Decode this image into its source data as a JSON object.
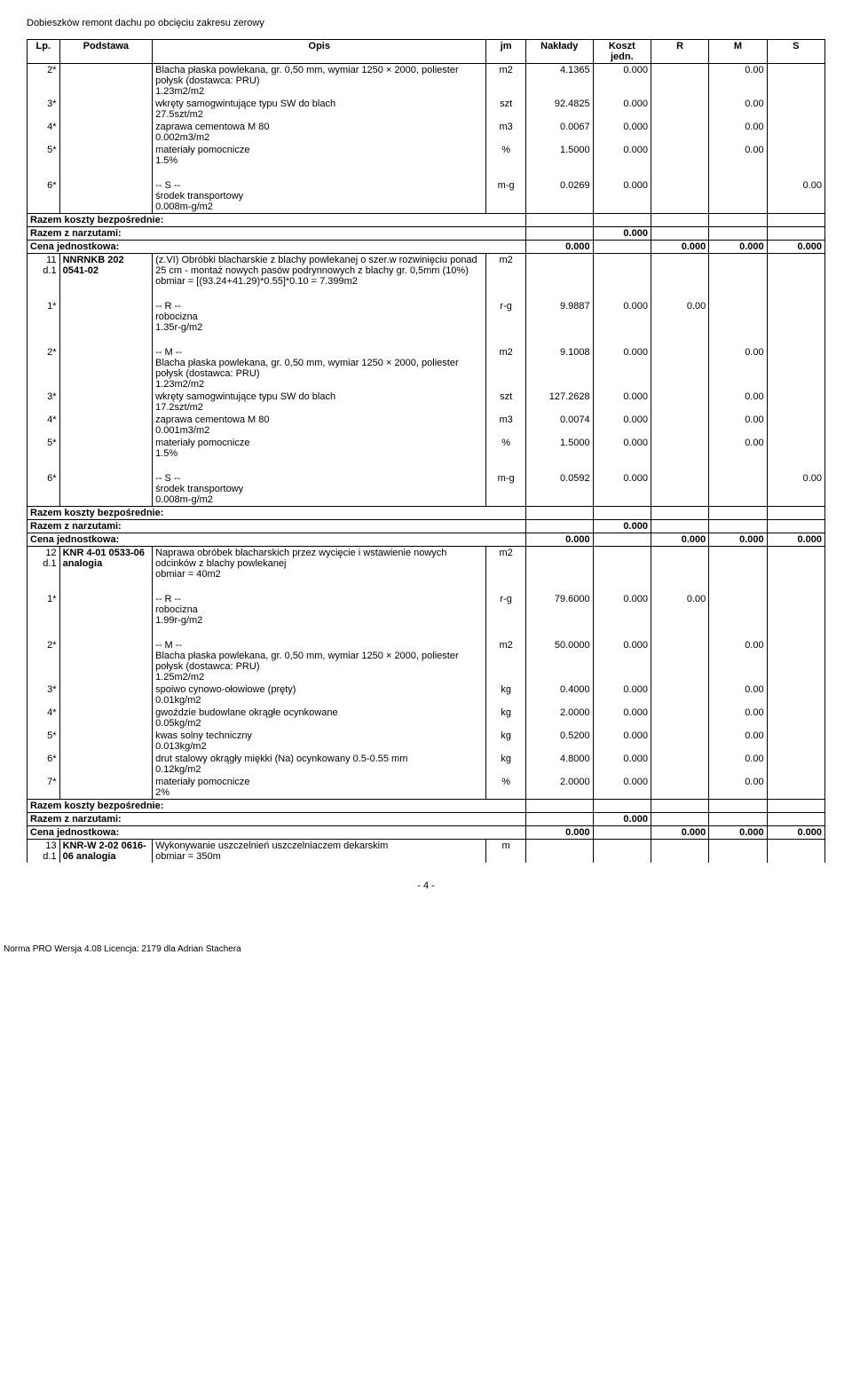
{
  "doc_title": "Dobieszków remont dachu po obcięciu zakresu zerowy",
  "header": {
    "lp": "Lp.",
    "podstawa": "Podstawa",
    "opis": "Opis",
    "jm": "jm",
    "naklady": "Nakłady",
    "koszt": "Koszt jedn.",
    "r": "R",
    "m": "M",
    "s": "S"
  },
  "rows": [
    {
      "lp": "2*",
      "pod": "",
      "opis": "Blacha płaska powlekana,  gr. 0,50 mm, wymiar 1250 × 2000, poliester połysk (dostawca: PRU)\n1.23m2/m2",
      "jm": "m2",
      "nak": "4.1365",
      "koszt": "0.000",
      "r": "",
      "m": "0.00",
      "s": ""
    },
    {
      "lp": "3*",
      "pod": "",
      "opis": "wkręty samogwintujące typu SW do blach\n27.5szt/m2",
      "jm": "szt",
      "nak": "92.4825",
      "koszt": "0.000",
      "r": "",
      "m": "0.00",
      "s": ""
    },
    {
      "lp": "4*",
      "pod": "",
      "opis": "zaprawa cementowa M 80\n0.002m3/m2",
      "jm": "m3",
      "nak": "0.0067",
      "koszt": "0.000",
      "r": "",
      "m": "0.00",
      "s": ""
    },
    {
      "lp": "5*",
      "pod": "",
      "opis": "materiały pomocnicze\n1.5%",
      "jm": "%",
      "nak": "1.5000",
      "koszt": "0.000",
      "r": "",
      "m": "0.00",
      "s": ""
    },
    {
      "sep": true
    },
    {
      "lp": "6*",
      "pod": "",
      "opis": "-- S --\nśrodek transportowy\n0.008m-g/m2",
      "jm": "m-g",
      "nak": "0.0269",
      "koszt": "0.000",
      "r": "",
      "m": "",
      "s": "0.00"
    },
    {
      "sum": "Razem koszty bezpośrednie:",
      "koszt": "",
      "r": "",
      "m": "",
      "s": ""
    },
    {
      "sum": "Razem z narzutami:",
      "koszt": "0.000",
      "r": "",
      "m": "",
      "s": ""
    },
    {
      "sum": "Cena jednostkowa:",
      "sumr": "0.000",
      "koszt": "",
      "r": "0.000",
      "m": "0.000",
      "s": "0.000"
    },
    {
      "lp": "11\nd.1",
      "pod": "NNRNKB 202 0541-02",
      "opis": "(z.VI) Obróbki blacharskie z blachy powlekanej o szer.w rozwinięciu ponad 25 cm - montaż nowych pasów podrynnowych  z blachy gr. 0,5mm (10%)\nobmiar = [(93.24+41.29)*0.55]*0.10 = 7.399m2",
      "jm": "m2",
      "nak": "",
      "koszt": "",
      "r": "",
      "m": "",
      "s": ""
    },
    {
      "sep": true
    },
    {
      "lp": "1*",
      "pod": "",
      "opis": "-- R --\nrobocizna\n1.35r-g/m2",
      "jm": "r-g",
      "nak": "9.9887",
      "koszt": "0.000",
      "r": "0.00",
      "m": "",
      "s": ""
    },
    {
      "sep": true
    },
    {
      "lp": "2*",
      "pod": "",
      "opis": "-- M --\nBlacha płaska powlekana,  gr. 0,50 mm, wymiar 1250 × 2000, poliester połysk (dostawca: PRU)\n1.23m2/m2",
      "jm": "m2",
      "nak": "9.1008",
      "koszt": "0.000",
      "r": "",
      "m": "0.00",
      "s": ""
    },
    {
      "lp": "3*",
      "pod": "",
      "opis": "wkręty samogwintujące typu SW do blach\n17.2szt/m2",
      "jm": "szt",
      "nak": "127.2628",
      "koszt": "0.000",
      "r": "",
      "m": "0.00",
      "s": ""
    },
    {
      "lp": "4*",
      "pod": "",
      "opis": "zaprawa cementowa M 80\n0.001m3/m2",
      "jm": "m3",
      "nak": "0.0074",
      "koszt": "0.000",
      "r": "",
      "m": "0.00",
      "s": ""
    },
    {
      "lp": "5*",
      "pod": "",
      "opis": "materiały pomocnicze\n1.5%",
      "jm": "%",
      "nak": "1.5000",
      "koszt": "0.000",
      "r": "",
      "m": "0.00",
      "s": ""
    },
    {
      "sep": true
    },
    {
      "lp": "6*",
      "pod": "",
      "opis": "-- S --\nśrodek transportowy\n0.008m-g/m2",
      "jm": "m-g",
      "nak": "0.0592",
      "koszt": "0.000",
      "r": "",
      "m": "",
      "s": "0.00"
    },
    {
      "sum": "Razem koszty bezpośrednie:",
      "koszt": "",
      "r": "",
      "m": "",
      "s": ""
    },
    {
      "sum": "Razem z narzutami:",
      "koszt": "0.000",
      "r": "",
      "m": "",
      "s": ""
    },
    {
      "sum": "Cena jednostkowa:",
      "sumr": "0.000",
      "koszt": "",
      "r": "0.000",
      "m": "0.000",
      "s": "0.000"
    },
    {
      "lp": "12\nd.1",
      "pod": "KNR 4-01 0533-06 analogia",
      "opis": "Naprawa obróbek blacharskich przez wycięcie i wstawienie nowych odcinków z blachy powlekanej\nobmiar = 40m2",
      "jm": "m2",
      "nak": "",
      "koszt": "",
      "r": "",
      "m": "",
      "s": ""
    },
    {
      "sep": true
    },
    {
      "lp": "1*",
      "pod": "",
      "opis": "-- R --\nrobocizna\n1.99r-g/m2",
      "jm": "r-g",
      "nak": "79.6000",
      "koszt": "0.000",
      "r": "0.00",
      "m": "",
      "s": ""
    },
    {
      "sep": true
    },
    {
      "lp": "2*",
      "pod": "",
      "opis": "-- M --\nBlacha płaska powlekana,  gr. 0,50 mm, wymiar 1250 × 2000, poliester połysk (dostawca: PRU)\n1.25m2/m2",
      "jm": "m2",
      "nak": "50.0000",
      "koszt": "0.000",
      "r": "",
      "m": "0.00",
      "s": ""
    },
    {
      "lp": "3*",
      "pod": "",
      "opis": "spoiwo cynowo-ołowiowe (pręty)\n0.01kg/m2",
      "jm": "kg",
      "nak": "0.4000",
      "koszt": "0.000",
      "r": "",
      "m": "0.00",
      "s": ""
    },
    {
      "lp": "4*",
      "pod": "",
      "opis": "gwoździe budowlane okrągłe ocynkowane\n0.05kg/m2",
      "jm": "kg",
      "nak": "2.0000",
      "koszt": "0.000",
      "r": "",
      "m": "0.00",
      "s": ""
    },
    {
      "lp": "5*",
      "pod": "",
      "opis": "kwas solny techniczny\n0.013kg/m2",
      "jm": "kg",
      "nak": "0.5200",
      "koszt": "0.000",
      "r": "",
      "m": "0.00",
      "s": ""
    },
    {
      "lp": "6*",
      "pod": "",
      "opis": "drut stalowy okrągły miękki (Na) ocynkowany 0.5-0.55 mm\n0.12kg/m2",
      "jm": "kg",
      "nak": "4.8000",
      "koszt": "0.000",
      "r": "",
      "m": "0.00",
      "s": ""
    },
    {
      "lp": "7*",
      "pod": "",
      "opis": "materiały pomocnicze\n2%",
      "jm": "%",
      "nak": "2.0000",
      "koszt": "0.000",
      "r": "",
      "m": "0.00",
      "s": ""
    },
    {
      "sum": "Razem koszty bezpośrednie:",
      "koszt": "",
      "r": "",
      "m": "",
      "s": ""
    },
    {
      "sum": "Razem z narzutami:",
      "koszt": "0.000",
      "r": "",
      "m": "",
      "s": ""
    },
    {
      "sum": "Cena jednostkowa:",
      "sumr": "0.000",
      "koszt": "",
      "r": "0.000",
      "m": "0.000",
      "s": "0.000"
    },
    {
      "lp": "13\nd.1",
      "pod": "KNR-W 2-02 0616-06 analogia",
      "opis": "Wykonywanie uszczelnień uszczelniaczem dekarskim\nobmiar = 350m",
      "jm": "m",
      "nak": "",
      "koszt": "",
      "r": "",
      "m": "",
      "s": ""
    }
  ],
  "pagenum": "- 4 -",
  "footer": "Norma PRO Wersja 4.08 Licencja: 2179 dla Adrian Stachera"
}
